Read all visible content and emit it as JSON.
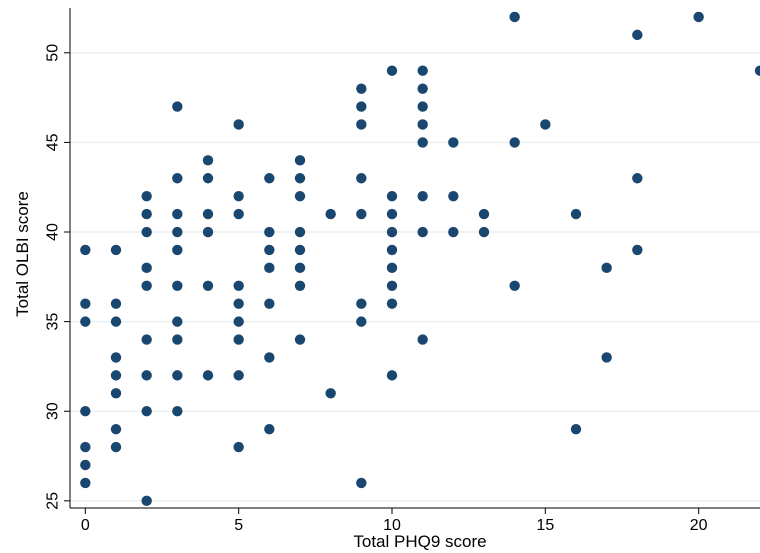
{
  "chart_data": {
    "type": "scatter",
    "title": "",
    "xlabel": "Total PHQ9 score",
    "ylabel": "Total OLBI score",
    "xlim": [
      -0.5,
      22
    ],
    "ylim": [
      24.6,
      52.5
    ],
    "xticks": [
      0,
      5,
      10,
      15,
      20
    ],
    "yticks": [
      25,
      30,
      35,
      40,
      45,
      50
    ],
    "grid": "horizontal",
    "legend": "none",
    "colors": {
      "marker": "#1a476f",
      "grid": "#e8eef1",
      "axis": "#000000"
    },
    "points": [
      [
        0,
        39
      ],
      [
        0,
        36
      ],
      [
        0,
        35
      ],
      [
        0,
        30
      ],
      [
        0,
        28
      ],
      [
        0,
        27
      ],
      [
        0,
        26
      ],
      [
        1,
        39
      ],
      [
        1,
        36
      ],
      [
        1,
        35
      ],
      [
        1,
        33
      ],
      [
        1,
        32
      ],
      [
        1,
        31
      ],
      [
        1,
        29
      ],
      [
        1,
        28
      ],
      [
        2,
        42
      ],
      [
        2,
        41
      ],
      [
        2,
        40
      ],
      [
        2,
        38
      ],
      [
        2,
        37
      ],
      [
        2,
        34
      ],
      [
        2,
        32
      ],
      [
        2,
        30
      ],
      [
        2,
        25
      ],
      [
        3,
        47
      ],
      [
        3,
        43
      ],
      [
        3,
        41
      ],
      [
        3,
        40
      ],
      [
        3,
        39
      ],
      [
        3,
        37
      ],
      [
        3,
        35
      ],
      [
        3,
        34
      ],
      [
        3,
        32
      ],
      [
        3,
        30
      ],
      [
        4,
        44
      ],
      [
        4,
        43
      ],
      [
        4,
        41
      ],
      [
        4,
        40
      ],
      [
        4,
        37
      ],
      [
        4,
        32
      ],
      [
        5,
        46
      ],
      [
        5,
        42
      ],
      [
        5,
        41
      ],
      [
        5,
        37
      ],
      [
        5,
        36
      ],
      [
        5,
        35
      ],
      [
        5,
        34
      ],
      [
        5,
        32
      ],
      [
        5,
        28
      ],
      [
        6,
        43
      ],
      [
        6,
        40
      ],
      [
        6,
        39
      ],
      [
        6,
        38
      ],
      [
        6,
        36
      ],
      [
        6,
        33
      ],
      [
        6,
        29
      ],
      [
        7,
        44
      ],
      [
        7,
        43
      ],
      [
        7,
        42
      ],
      [
        7,
        40
      ],
      [
        7,
        39
      ],
      [
        7,
        38
      ],
      [
        7,
        37
      ],
      [
        7,
        34
      ],
      [
        8,
        41
      ],
      [
        8,
        31
      ],
      [
        9,
        48
      ],
      [
        9,
        47
      ],
      [
        9,
        46
      ],
      [
        9,
        43
      ],
      [
        9,
        41
      ],
      [
        9,
        36
      ],
      [
        9,
        35
      ],
      [
        9,
        26
      ],
      [
        10,
        49
      ],
      [
        10,
        42
      ],
      [
        10,
        41
      ],
      [
        10,
        40
      ],
      [
        10,
        39
      ],
      [
        10,
        38
      ],
      [
        10,
        37
      ],
      [
        10,
        36
      ],
      [
        10,
        32
      ],
      [
        11,
        49
      ],
      [
        11,
        48
      ],
      [
        11,
        47
      ],
      [
        11,
        46
      ],
      [
        11,
        45
      ],
      [
        11,
        42
      ],
      [
        11,
        40
      ],
      [
        11,
        34
      ],
      [
        12,
        45
      ],
      [
        12,
        42
      ],
      [
        12,
        40
      ],
      [
        13,
        41
      ],
      [
        13,
        40
      ],
      [
        14,
        52
      ],
      [
        14,
        45
      ],
      [
        14,
        37
      ],
      [
        15,
        46
      ],
      [
        16,
        41
      ],
      [
        16,
        29
      ],
      [
        17,
        38
      ],
      [
        17,
        33
      ],
      [
        18,
        51
      ],
      [
        18,
        43
      ],
      [
        18,
        39
      ],
      [
        20,
        52
      ],
      [
        22,
        49
      ]
    ]
  }
}
